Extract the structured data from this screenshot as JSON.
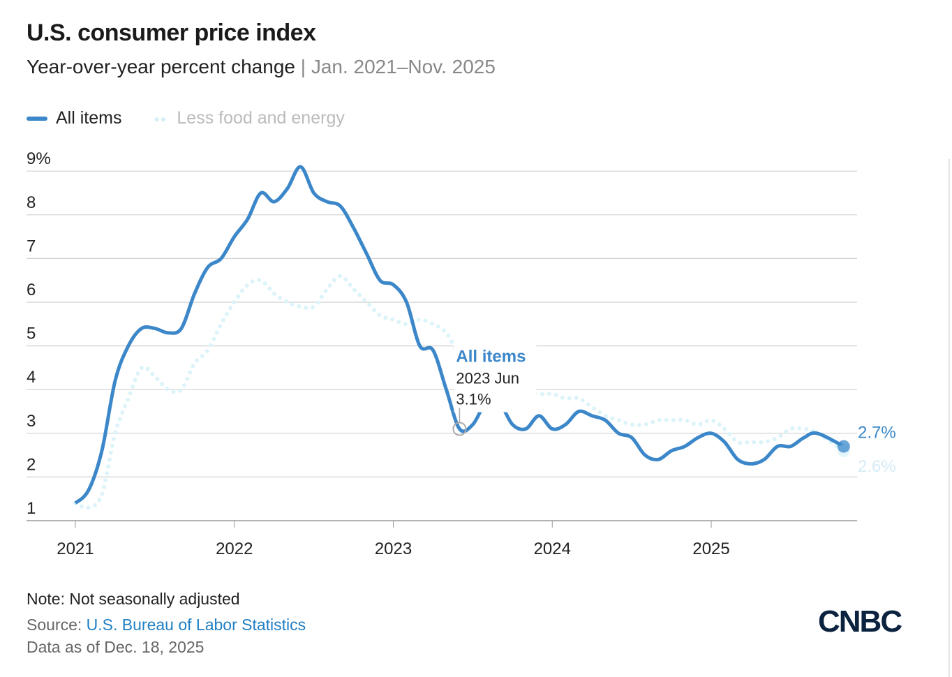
{
  "title": "U.S. consumer price index",
  "subtitle": "Year-over-year percent change",
  "date_range": "Jan. 2021–Nov. 2025",
  "note": "Note: Not seasonally adjusted",
  "source_label": "Source:",
  "source_link": "U.S. Bureau of Labor Statistics",
  "data_as_of": "Data as of Dec. 18, 2025",
  "logo": "CNBC",
  "chart_data": {
    "type": "line",
    "title": "U.S. consumer price index",
    "ylabel": "Year-over-year percent change",
    "ylim": [
      1,
      9
    ],
    "yticks": [
      "1",
      "2",
      "3",
      "4",
      "5",
      "6",
      "7",
      "8",
      "9%"
    ],
    "xticks": [
      "2021",
      "2022",
      "2023",
      "2024",
      "2025"
    ],
    "x_start": "2021-01",
    "grid": true,
    "legend": "top-left",
    "series": [
      {
        "name": "All items",
        "color": "#3b87c9",
        "style": "solid",
        "end_label": "2.7%",
        "values": [
          1.4,
          1.7,
          2.6,
          4.2,
          5.0,
          5.4,
          5.4,
          5.3,
          5.4,
          6.2,
          6.8,
          7.0,
          7.5,
          7.9,
          8.5,
          8.3,
          8.6,
          9.1,
          8.5,
          8.3,
          8.2,
          7.7,
          7.1,
          6.5,
          6.4,
          6.0,
          5.0,
          4.9,
          4.0,
          3.1,
          3.2,
          3.7,
          3.7,
          3.2,
          3.1,
          3.4,
          3.1,
          3.2,
          3.5,
          3.4,
          3.3,
          3.0,
          2.9,
          2.5,
          2.4,
          2.6,
          2.7,
          2.9,
          3.0,
          2.8,
          2.4,
          2.3,
          2.4,
          2.7,
          2.7,
          2.9,
          3.0,
          null,
          2.7
        ]
      },
      {
        "name": "Less food and energy",
        "color": "#dcf4f9",
        "style": "dotted",
        "end_label": "2.6%",
        "values": [
          1.4,
          1.3,
          1.6,
          3.0,
          3.8,
          4.5,
          4.3,
          4.0,
          4.0,
          4.6,
          4.9,
          5.5,
          6.0,
          6.4,
          6.5,
          6.2,
          6.0,
          5.9,
          5.9,
          6.3,
          6.6,
          6.3,
          6.0,
          5.7,
          5.6,
          5.5,
          5.6,
          5.5,
          5.3,
          4.8,
          4.7,
          4.3,
          4.1,
          4.0,
          4.0,
          3.9,
          3.9,
          3.8,
          3.8,
          3.6,
          3.4,
          3.3,
          3.2,
          3.2,
          3.3,
          3.3,
          3.3,
          3.2,
          3.3,
          3.1,
          2.8,
          2.8,
          2.8,
          2.9,
          3.1,
          3.1,
          3.0,
          null,
          2.6
        ]
      }
    ],
    "tooltip": {
      "series": "All items",
      "label": "2023 Jun",
      "value": "3.1%",
      "index": 29
    }
  }
}
